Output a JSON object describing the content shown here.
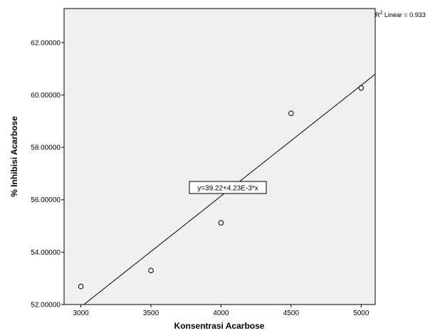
{
  "chart_data": {
    "type": "scatter",
    "xlabel": "Konsentrasi Acarbose",
    "ylabel": "% Inhibisi Acarbose",
    "xlim": [
      2880,
      5100
    ],
    "ylim": [
      52.0,
      63.3
    ],
    "x_ticks": [
      "3000",
      "3500",
      "4000",
      "4500",
      "5000"
    ],
    "y_ticks": [
      "52.00000",
      "54.00000",
      "56.00000",
      "58.00000",
      "60.00000",
      "62.00000"
    ],
    "points": [
      {
        "x": 3000,
        "y": 52.69
      },
      {
        "x": 3500,
        "y": 53.3
      },
      {
        "x": 4000,
        "y": 55.12
      },
      {
        "x": 4500,
        "y": 59.3
      },
      {
        "x": 5000,
        "y": 60.27
      }
    ],
    "fit_line": {
      "intercept": 39.22,
      "slope": 0.00423,
      "equation_label": "y=39.22+4.23E-3*x"
    },
    "r2_label": {
      "prefix": "R",
      "superscript": "2",
      "suffix": " Linear = 0.933"
    },
    "grid": false,
    "background_color": "#f0f0f0",
    "marker_style": "open-circle"
  }
}
